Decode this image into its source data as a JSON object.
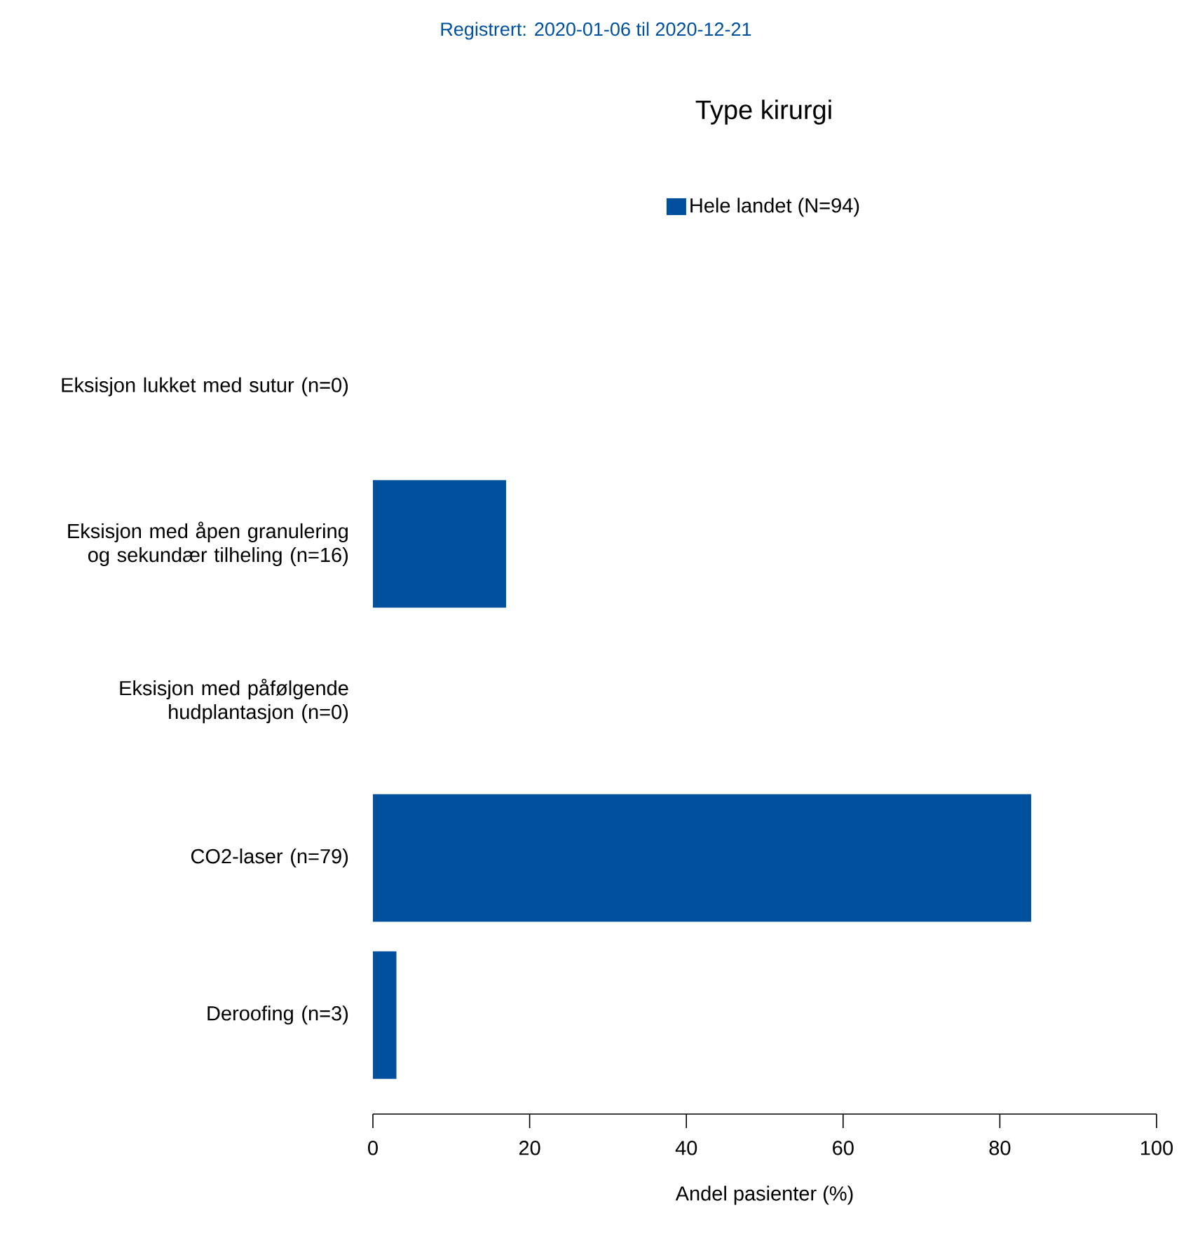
{
  "chart_data": {
    "type": "bar",
    "orientation": "horizontal",
    "title": "Type kirurgi",
    "subtitle": "Registrert: 2020-01-06 til 2020-12-21",
    "xlabel": "Andel pasienter (%)",
    "categories": [
      "Eksisjon lukket med sutur (n=0)",
      "Eksisjon med åpen granulering og sekundær tilheling (n=16)",
      "Eksisjon med påfølgende hudplantasjon (n=0)",
      "CO2-laser (n=79)",
      "Deroofing (n=3)"
    ],
    "series": [
      {
        "name": "Hele landet (N=94)",
        "color": "#00509e",
        "values": [
          0,
          17,
          0,
          84,
          3
        ]
      }
    ],
    "xlim": [
      0,
      100
    ],
    "xticks": [
      0,
      20,
      40,
      60,
      80,
      100
    ],
    "legend": "top"
  }
}
